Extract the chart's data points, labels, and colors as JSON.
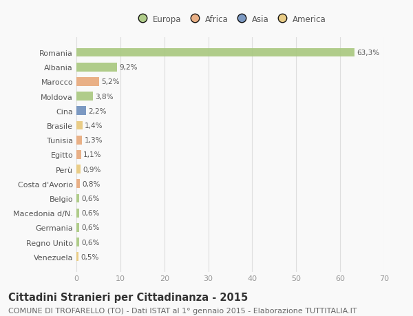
{
  "countries": [
    "Romania",
    "Albania",
    "Marocco",
    "Moldova",
    "Cina",
    "Brasile",
    "Tunisia",
    "Egitto",
    "Perù",
    "Costa d'Avorio",
    "Belgio",
    "Macedonia d/N.",
    "Germania",
    "Regno Unito",
    "Venezuela"
  ],
  "values": [
    63.3,
    9.2,
    5.2,
    3.8,
    2.2,
    1.4,
    1.3,
    1.1,
    0.9,
    0.8,
    0.6,
    0.6,
    0.6,
    0.6,
    0.5
  ],
  "labels": [
    "63,3%",
    "9,2%",
    "5,2%",
    "3,8%",
    "2,2%",
    "1,4%",
    "1,3%",
    "1,1%",
    "0,9%",
    "0,8%",
    "0,6%",
    "0,6%",
    "0,6%",
    "0,6%",
    "0,5%"
  ],
  "colors": [
    "#a8c87e",
    "#a8c87e",
    "#e8a87a",
    "#a8c87e",
    "#6e8fbc",
    "#e8c87a",
    "#e8a87a",
    "#e8a87a",
    "#e8c87a",
    "#e8a87a",
    "#a8c87e",
    "#a8c87e",
    "#a8c87e",
    "#a8c87e",
    "#e8c87a"
  ],
  "legend_labels": [
    "Europa",
    "Africa",
    "Asia",
    "America"
  ],
  "legend_colors": [
    "#a8c87e",
    "#e8a87a",
    "#6e8fbc",
    "#e8c87a"
  ],
  "title": "Cittadini Stranieri per Cittadinanza - 2015",
  "subtitle": "COMUNE DI TROFARELLO (TO) - Dati ISTAT al 1° gennaio 2015 - Elaborazione TUTTITALIA.IT",
  "xlim": [
    0,
    70
  ],
  "xticks": [
    0,
    10,
    20,
    30,
    40,
    50,
    60,
    70
  ],
  "background_color": "#f9f9f9",
  "grid_color": "#dddddd",
  "bar_height": 0.6,
  "title_fontsize": 10.5,
  "subtitle_fontsize": 8,
  "label_fontsize": 7.5,
  "tick_fontsize": 8,
  "legend_fontsize": 8.5
}
